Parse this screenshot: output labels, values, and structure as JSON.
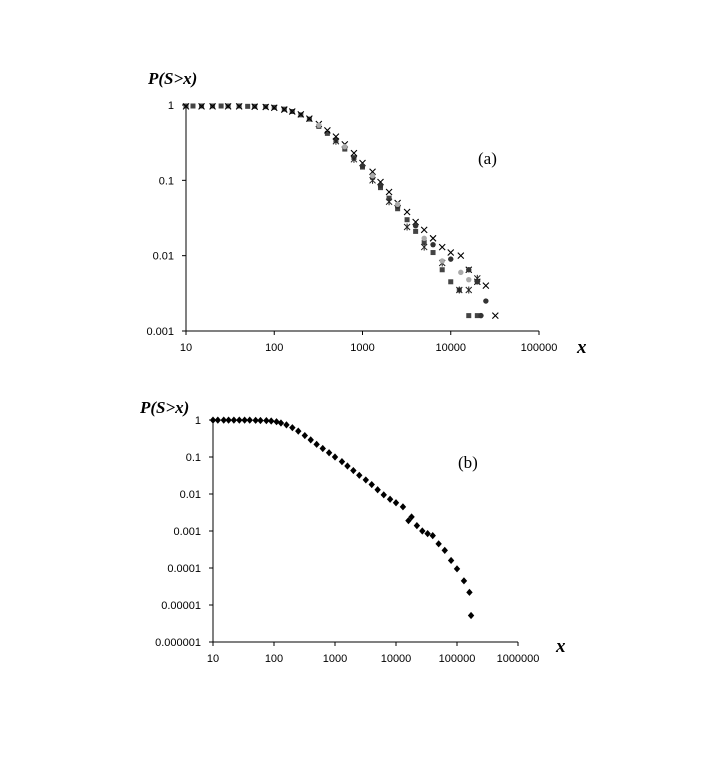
{
  "chart_data": [
    {
      "type": "scatter",
      "panel_label": "(a)",
      "ylabel": "P(S>x)",
      "xlabel": "x",
      "x_scale": "log",
      "y_scale": "log",
      "xlim": [
        10,
        100000
      ],
      "ylim": [
        0.001,
        1
      ],
      "x_ticks": [
        "10",
        "100",
        "1000",
        "10000",
        "100000"
      ],
      "y_ticks": [
        "1",
        "0.1",
        "0.01",
        "0.001"
      ],
      "grid": false,
      "legend": "none",
      "series": [
        {
          "marker": "square",
          "color": "#444444",
          "points": [
            [
              10,
              0.97
            ],
            [
              12,
              0.97
            ],
            [
              15,
              0.97
            ],
            [
              20,
              0.97
            ],
            [
              25,
              0.97
            ],
            [
              30,
              0.97
            ],
            [
              40,
              0.97
            ],
            [
              50,
              0.96
            ],
            [
              60,
              0.96
            ],
            [
              80,
              0.95
            ],
            [
              100,
              0.93
            ],
            [
              130,
              0.88
            ],
            [
              160,
              0.82
            ],
            [
              200,
              0.74
            ],
            [
              250,
              0.65
            ],
            [
              320,
              0.52
            ],
            [
              400,
              0.42
            ],
            [
              500,
              0.34
            ],
            [
              630,
              0.26
            ],
            [
              800,
              0.2
            ],
            [
              1000,
              0.15
            ],
            [
              1300,
              0.11
            ],
            [
              1600,
              0.08
            ],
            [
              2000,
              0.058
            ],
            [
              2500,
              0.042
            ],
            [
              3200,
              0.03
            ],
            [
              4000,
              0.021
            ],
            [
              5000,
              0.015
            ],
            [
              6300,
              0.011
            ],
            [
              8000,
              0.0065
            ],
            [
              10000,
              0.0045
            ],
            [
              12500,
              0.0035
            ],
            [
              16000,
              0.0016
            ],
            [
              20000,
              0.0016
            ]
          ]
        },
        {
          "marker": "x",
          "color": "#000000",
          "points": [
            [
              10,
              0.96
            ],
            [
              15,
              0.96
            ],
            [
              20,
              0.96
            ],
            [
              30,
              0.96
            ],
            [
              40,
              0.96
            ],
            [
              60,
              0.95
            ],
            [
              80,
              0.94
            ],
            [
              100,
              0.92
            ],
            [
              130,
              0.87
            ],
            [
              160,
              0.82
            ],
            [
              200,
              0.75
            ],
            [
              250,
              0.66
            ],
            [
              320,
              0.56
            ],
            [
              400,
              0.46
            ],
            [
              500,
              0.38
            ],
            [
              630,
              0.3
            ],
            [
              800,
              0.23
            ],
            [
              1000,
              0.17
            ],
            [
              1300,
              0.13
            ],
            [
              1600,
              0.095
            ],
            [
              2000,
              0.07
            ],
            [
              2500,
              0.05
            ],
            [
              3200,
              0.038
            ],
            [
              4000,
              0.028
            ],
            [
              5000,
              0.022
            ],
            [
              6300,
              0.017
            ],
            [
              8000,
              0.013
            ],
            [
              10000,
              0.011
            ],
            [
              13000,
              0.01
            ],
            [
              16000,
              0.0065
            ],
            [
              20000,
              0.0045
            ],
            [
              25000,
              0.004
            ],
            [
              32000,
              0.0016
            ]
          ]
        },
        {
          "marker": "star",
          "color": "#222222",
          "points": [
            [
              500,
              0.33
            ],
            [
              800,
              0.19
            ],
            [
              1300,
              0.1
            ],
            [
              2000,
              0.052
            ],
            [
              3200,
              0.024
            ],
            [
              5000,
              0.013
            ],
            [
              8000,
              0.008
            ],
            [
              12500,
              0.0035
            ],
            [
              16000,
              0.0035
            ],
            [
              20000,
              0.005
            ]
          ]
        },
        {
          "marker": "circle",
          "color": "#333333",
          "points": [
            [
              1000,
              0.155
            ],
            [
              1600,
              0.085
            ],
            [
              2500,
              0.045
            ],
            [
              4000,
              0.025
            ],
            [
              6300,
              0.014
            ],
            [
              10000,
              0.009
            ],
            [
              16000,
              0.0065
            ],
            [
              20000,
              0.0045
            ],
            [
              25000,
              0.0025
            ],
            [
              22000,
              0.0016
            ]
          ]
        },
        {
          "marker": "circle",
          "color": "#aaaaaa",
          "points": [
            [
              320,
              0.54
            ],
            [
              630,
              0.28
            ],
            [
              1300,
              0.115
            ],
            [
              2500,
              0.048
            ],
            [
              5000,
              0.017
            ],
            [
              8000,
              0.0085
            ],
            [
              13000,
              0.006
            ],
            [
              16000,
              0.0048
            ]
          ]
        }
      ]
    },
    {
      "type": "scatter",
      "panel_label": "(b)",
      "ylabel": "P(S>x)",
      "xlabel": "x",
      "x_scale": "log",
      "y_scale": "log",
      "xlim": [
        10,
        1000000
      ],
      "ylim": [
        1e-06,
        1
      ],
      "x_ticks": [
        "10",
        "100",
        "1000",
        "10000",
        "100000",
        "1000000"
      ],
      "y_ticks": [
        "1",
        "0.1",
        "0.01",
        "0.001",
        "0.0001",
        "0.00001",
        "0.000001"
      ],
      "grid": false,
      "legend": "none",
      "series": [
        {
          "marker": "diamond",
          "color": "#000000",
          "points": [
            [
              10,
              0.99
            ],
            [
              12,
              0.99
            ],
            [
              15,
              0.99
            ],
            [
              18,
              0.99
            ],
            [
              22,
              0.99
            ],
            [
              27,
              0.99
            ],
            [
              33,
              0.99
            ],
            [
              40,
              0.99
            ],
            [
              50,
              0.98
            ],
            [
              60,
              0.97
            ],
            [
              75,
              0.96
            ],
            [
              90,
              0.94
            ],
            [
              110,
              0.9
            ],
            [
              130,
              0.83
            ],
            [
              160,
              0.74
            ],
            [
              200,
              0.62
            ],
            [
              250,
              0.5
            ],
            [
              320,
              0.38
            ],
            [
              400,
              0.29
            ],
            [
              500,
              0.22
            ],
            [
              630,
              0.17
            ],
            [
              800,
              0.13
            ],
            [
              1000,
              0.1
            ],
            [
              1300,
              0.075
            ],
            [
              1600,
              0.057
            ],
            [
              2000,
              0.043
            ],
            [
              2500,
              0.032
            ],
            [
              3200,
              0.024
            ],
            [
              4000,
              0.018
            ],
            [
              5000,
              0.013
            ],
            [
              6300,
              0.0095
            ],
            [
              8000,
              0.0072
            ],
            [
              10000,
              0.0058
            ],
            [
              13000,
              0.0045
            ],
            [
              16000,
              0.0019
            ],
            [
              18000,
              0.0024
            ],
            [
              22000,
              0.0014
            ],
            [
              27000,
              0.001
            ],
            [
              33000,
              0.00085
            ],
            [
              40000,
              0.00075
            ],
            [
              50000,
              0.00045
            ],
            [
              63000,
              0.0003
            ],
            [
              80000,
              0.00016
            ],
            [
              100000,
              9.5e-05
            ],
            [
              130000,
              4.5e-05
            ],
            [
              160000,
              2.2e-05
            ],
            [
              170000,
              5.2e-06
            ]
          ]
        }
      ]
    }
  ]
}
